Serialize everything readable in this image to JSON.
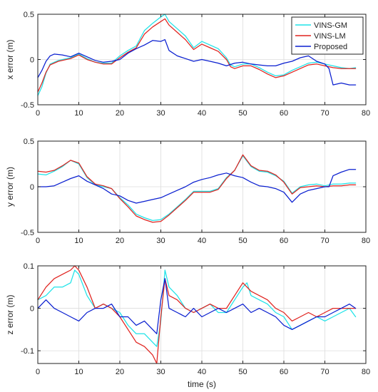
{
  "colors": {
    "VINS-GM": "#1ee3e8",
    "VINS-LM": "#e0231f",
    "Proposed": "#0a1fd0"
  },
  "chart_data": [
    {
      "type": "line",
      "xlabel": "",
      "ylabel": "x error (m)",
      "xlim": [
        0,
        80
      ],
      "ylim": [
        -0.5,
        0.5
      ],
      "xticks": [
        0,
        10,
        20,
        30,
        40,
        50,
        60,
        70,
        80
      ],
      "yticks": [
        -0.5,
        0,
        0.5
      ],
      "grid": true,
      "legend": "top-right",
      "series": [
        {
          "name": "VINS-GM",
          "x": [
            0,
            1,
            2,
            3,
            5,
            8,
            10,
            12,
            14,
            16,
            18,
            20,
            22,
            24,
            26,
            28,
            30,
            31,
            32,
            34,
            36,
            38,
            40,
            42,
            44,
            46,
            47,
            48,
            50,
            52,
            54,
            56,
            58,
            60,
            62,
            64,
            66,
            68,
            70,
            72,
            74,
            76,
            77.5
          ],
          "y": [
            -0.4,
            -0.3,
            -0.15,
            -0.05,
            -0.01,
            0.02,
            0.06,
            0.01,
            -0.03,
            -0.04,
            -0.04,
            0.04,
            0.1,
            0.15,
            0.32,
            0.4,
            0.47,
            0.5,
            0.42,
            0.34,
            0.26,
            0.13,
            0.2,
            0.16,
            0.12,
            0.02,
            -0.06,
            -0.08,
            -0.05,
            -0.05,
            -0.09,
            -0.14,
            -0.18,
            -0.17,
            -0.12,
            -0.08,
            -0.04,
            -0.03,
            -0.05,
            -0.07,
            -0.09,
            -0.1,
            -0.09
          ]
        },
        {
          "name": "VINS-LM",
          "x": [
            0,
            1,
            2,
            3,
            5,
            8,
            10,
            12,
            14,
            16,
            18,
            20,
            22,
            24,
            26,
            28,
            30,
            31,
            32,
            34,
            36,
            38,
            40,
            42,
            44,
            46,
            47,
            48,
            50,
            52,
            54,
            56,
            58,
            60,
            62,
            64,
            66,
            68,
            70,
            72,
            74,
            76,
            77.5
          ],
          "y": [
            -0.36,
            -0.26,
            -0.14,
            -0.06,
            -0.02,
            0.01,
            0.05,
            0.0,
            -0.03,
            -0.05,
            -0.05,
            0.02,
            0.08,
            0.13,
            0.28,
            0.36,
            0.42,
            0.45,
            0.38,
            0.3,
            0.22,
            0.11,
            0.17,
            0.13,
            0.09,
            0.0,
            -0.08,
            -0.1,
            -0.07,
            -0.07,
            -0.11,
            -0.16,
            -0.2,
            -0.18,
            -0.14,
            -0.1,
            -0.06,
            -0.05,
            -0.07,
            -0.09,
            -0.1,
            -0.1,
            -0.1
          ]
        },
        {
          "name": "Proposed",
          "x": [
            0,
            1,
            2,
            3,
            4,
            6,
            8,
            10,
            12,
            14,
            16,
            18,
            20,
            22,
            24,
            26,
            28,
            30,
            31,
            32,
            34,
            36,
            38,
            40,
            42,
            44,
            46,
            48,
            50,
            52,
            54,
            56,
            58,
            60,
            62,
            64,
            66,
            68,
            70,
            71,
            72,
            74,
            76,
            77.5
          ],
          "y": [
            -0.2,
            -0.12,
            -0.02,
            0.04,
            0.06,
            0.05,
            0.03,
            0.07,
            0.03,
            -0.01,
            -0.03,
            -0.02,
            0.0,
            0.07,
            0.12,
            0.16,
            0.21,
            0.2,
            0.22,
            0.1,
            0.04,
            0.01,
            -0.02,
            0.0,
            -0.02,
            -0.04,
            -0.07,
            -0.04,
            -0.03,
            -0.05,
            -0.06,
            -0.07,
            -0.07,
            -0.04,
            -0.02,
            0.02,
            0.04,
            -0.02,
            -0.05,
            -0.1,
            -0.28,
            -0.26,
            -0.28,
            -0.28
          ]
        }
      ]
    },
    {
      "type": "line",
      "xlabel": "",
      "ylabel": "y error (m)",
      "xlim": [
        0,
        80
      ],
      "ylim": [
        -0.5,
        0.5
      ],
      "xticks": [
        0,
        10,
        20,
        30,
        40,
        50,
        60,
        70,
        80
      ],
      "yticks": [
        -0.5,
        0,
        0.5
      ],
      "grid": true,
      "series": [
        {
          "name": "VINS-GM",
          "x": [
            0,
            2,
            4,
            6,
            8,
            10,
            12,
            14,
            16,
            18,
            20,
            22,
            24,
            26,
            28,
            30,
            32,
            34,
            36,
            38,
            40,
            42,
            44,
            46,
            48,
            50,
            52,
            54,
            56,
            58,
            60,
            62,
            64,
            66,
            68,
            70,
            72,
            74,
            76,
            77.5
          ],
          "y": [
            0.14,
            0.13,
            0.17,
            0.22,
            0.29,
            0.25,
            0.1,
            0.02,
            0.0,
            -0.02,
            -0.12,
            -0.2,
            -0.3,
            -0.34,
            -0.37,
            -0.36,
            -0.3,
            -0.22,
            -0.14,
            -0.05,
            -0.05,
            -0.05,
            -0.02,
            0.1,
            0.18,
            0.34,
            0.22,
            0.17,
            0.16,
            0.12,
            0.06,
            -0.07,
            0.0,
            0.02,
            0.03,
            0.01,
            0.03,
            0.03,
            0.04,
            0.04
          ]
        },
        {
          "name": "VINS-LM",
          "x": [
            0,
            2,
            4,
            6,
            8,
            10,
            12,
            14,
            16,
            18,
            20,
            22,
            24,
            26,
            28,
            30,
            32,
            34,
            36,
            38,
            40,
            42,
            44,
            46,
            48,
            50,
            52,
            54,
            56,
            58,
            60,
            62,
            64,
            66,
            68,
            70,
            72,
            74,
            76,
            77.5
          ],
          "y": [
            0.17,
            0.16,
            0.18,
            0.23,
            0.29,
            0.26,
            0.11,
            0.03,
            0.01,
            -0.02,
            -0.13,
            -0.22,
            -0.32,
            -0.36,
            -0.39,
            -0.38,
            -0.31,
            -0.23,
            -0.15,
            -0.06,
            -0.06,
            -0.06,
            -0.03,
            0.09,
            0.18,
            0.35,
            0.23,
            0.18,
            0.17,
            0.13,
            0.05,
            -0.08,
            -0.01,
            0.0,
            0.01,
            0.0,
            0.01,
            0.01,
            0.02,
            0.02
          ]
        },
        {
          "name": "Proposed",
          "x": [
            0,
            2,
            4,
            6,
            8,
            10,
            12,
            14,
            16,
            18,
            20,
            22,
            24,
            26,
            28,
            30,
            32,
            34,
            36,
            38,
            40,
            42,
            44,
            46,
            48,
            50,
            52,
            54,
            56,
            58,
            60,
            62,
            64,
            66,
            68,
            70,
            71,
            72,
            74,
            76,
            77.5
          ],
          "y": [
            0.0,
            0.0,
            0.01,
            0.05,
            0.09,
            0.12,
            0.06,
            0.02,
            -0.02,
            -0.08,
            -0.1,
            -0.15,
            -0.18,
            -0.16,
            -0.14,
            -0.12,
            -0.08,
            -0.04,
            0.0,
            0.05,
            0.08,
            0.1,
            0.13,
            0.15,
            0.12,
            0.1,
            0.05,
            0.01,
            0.0,
            -0.02,
            -0.06,
            -0.17,
            -0.08,
            -0.04,
            -0.02,
            0.0,
            0.0,
            0.12,
            0.16,
            0.19,
            0.19
          ]
        }
      ]
    },
    {
      "type": "line",
      "xlabel": "time (s)",
      "ylabel": "z error (m)",
      "xlim": [
        0,
        80
      ],
      "ylim": [
        -0.13,
        0.1
      ],
      "xticks": [
        0,
        10,
        20,
        30,
        40,
        50,
        60,
        70,
        80
      ],
      "yticks": [
        -0.1,
        0,
        0.1
      ],
      "yticklabels": [
        "-0.1",
        "0",
        "0.1"
      ],
      "grid": true,
      "series": [
        {
          "name": "VINS-GM",
          "x": [
            0,
            2,
            4,
            6,
            8,
            9,
            10,
            12,
            14,
            16,
            18,
            20,
            22,
            24,
            26,
            28,
            29,
            30,
            31,
            32,
            34,
            36,
            38,
            40,
            42,
            44,
            46,
            48,
            50,
            51,
            52,
            54,
            56,
            58,
            60,
            62,
            64,
            66,
            68,
            70,
            72,
            74,
            76,
            77.5
          ],
          "y": [
            0.02,
            0.03,
            0.05,
            0.05,
            0.06,
            0.09,
            0.08,
            0.03,
            0.0,
            0.01,
            0.0,
            -0.01,
            -0.04,
            -0.06,
            -0.06,
            -0.08,
            -0.09,
            -0.03,
            0.09,
            0.05,
            0.03,
            0.0,
            -0.01,
            0.0,
            0.01,
            -0.01,
            -0.01,
            0.02,
            0.05,
            0.06,
            0.03,
            0.02,
            0.01,
            -0.01,
            -0.02,
            -0.05,
            -0.04,
            -0.03,
            -0.02,
            -0.03,
            -0.02,
            -0.01,
            0.0,
            -0.02
          ]
        },
        {
          "name": "VINS-LM",
          "x": [
            0,
            2,
            4,
            6,
            8,
            9,
            10,
            12,
            14,
            16,
            18,
            20,
            22,
            24,
            26,
            28,
            29,
            30,
            31,
            32,
            34,
            36,
            38,
            40,
            42,
            44,
            46,
            48,
            50,
            51,
            52,
            54,
            56,
            58,
            60,
            62,
            64,
            66,
            68,
            70,
            72,
            74,
            76,
            77.5
          ],
          "y": [
            0.02,
            0.05,
            0.07,
            0.08,
            0.09,
            0.1,
            0.09,
            0.05,
            0.0,
            0.01,
            0.0,
            -0.02,
            -0.05,
            -0.08,
            -0.09,
            -0.11,
            -0.13,
            -0.02,
            0.07,
            0.03,
            0.02,
            0.0,
            -0.01,
            0.0,
            0.01,
            0.0,
            0.0,
            0.03,
            0.06,
            0.05,
            0.04,
            0.03,
            0.02,
            0.0,
            -0.01,
            -0.03,
            -0.02,
            -0.01,
            -0.02,
            -0.01,
            0.0,
            0.0,
            0.0,
            0.0
          ]
        },
        {
          "name": "Proposed",
          "x": [
            0,
            2,
            4,
            6,
            8,
            10,
            12,
            14,
            16,
            18,
            20,
            22,
            24,
            26,
            28,
            29,
            30,
            31,
            32,
            34,
            36,
            38,
            40,
            42,
            44,
            46,
            48,
            50,
            52,
            54,
            56,
            58,
            60,
            62,
            64,
            66,
            68,
            70,
            72,
            74,
            76,
            77.5
          ],
          "y": [
            0.0,
            0.02,
            0.0,
            -0.01,
            -0.02,
            -0.03,
            -0.01,
            0.0,
            0.0,
            0.01,
            -0.02,
            -0.02,
            -0.04,
            -0.03,
            -0.05,
            -0.06,
            0.02,
            0.07,
            0.0,
            -0.01,
            -0.02,
            0.0,
            -0.02,
            -0.01,
            0.0,
            -0.01,
            0.0,
            0.01,
            -0.01,
            0.0,
            -0.01,
            -0.02,
            -0.04,
            -0.05,
            -0.04,
            -0.03,
            -0.02,
            -0.02,
            -0.01,
            0.0,
            0.01,
            0.0
          ]
        }
      ]
    }
  ]
}
